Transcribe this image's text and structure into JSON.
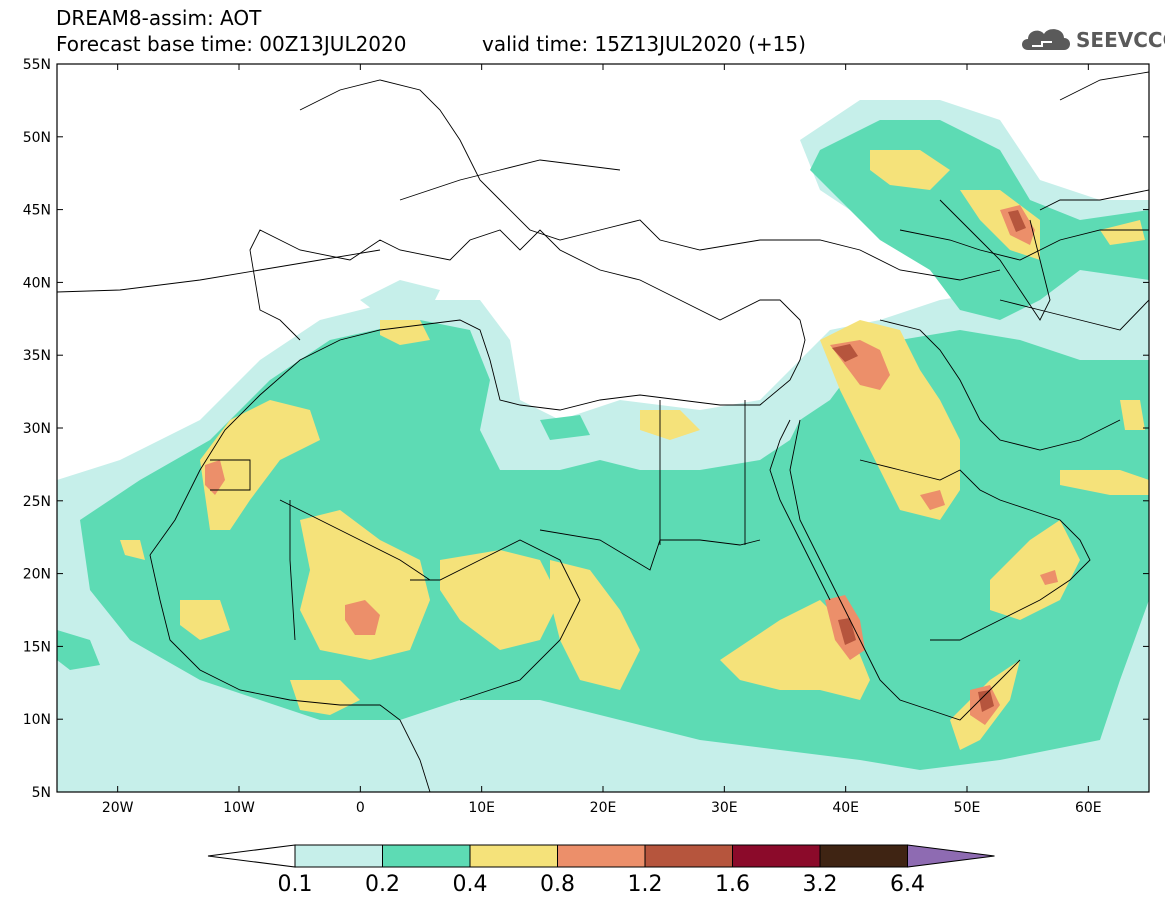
{
  "header": {
    "title": "DREAM8-assim: AOT",
    "base_time": "Forecast base time: 00Z13JUL2020",
    "valid_time": "valid time: 15Z13JUL2020 (+15)"
  },
  "logo": {
    "text": "SEEVCCC",
    "icon": "cloud-icon"
  },
  "map": {
    "lat_labels": [
      "55N",
      "50N",
      "45N",
      "40N",
      "35N",
      "30N",
      "25N",
      "20N",
      "15N",
      "10N",
      "5N"
    ],
    "lon_labels": [
      "20W",
      "10W",
      "0",
      "10E",
      "20E",
      "30E",
      "40E",
      "50E",
      "60E"
    ],
    "lon_range": [
      -25,
      65
    ],
    "lat_range": [
      5,
      55
    ]
  },
  "colorbar": {
    "labels": [
      "0.1",
      "0.2",
      "0.4",
      "0.8",
      "1.2",
      "1.6",
      "3.2",
      "6.4"
    ],
    "colors": [
      "#c6efea",
      "#5ddbb4",
      "#f5e27a",
      "#ec8f6a",
      "#b6553d",
      "#8b0a2a",
      "#3f2413",
      "#8e6bb2"
    ],
    "under_color": "#ffffff"
  }
}
